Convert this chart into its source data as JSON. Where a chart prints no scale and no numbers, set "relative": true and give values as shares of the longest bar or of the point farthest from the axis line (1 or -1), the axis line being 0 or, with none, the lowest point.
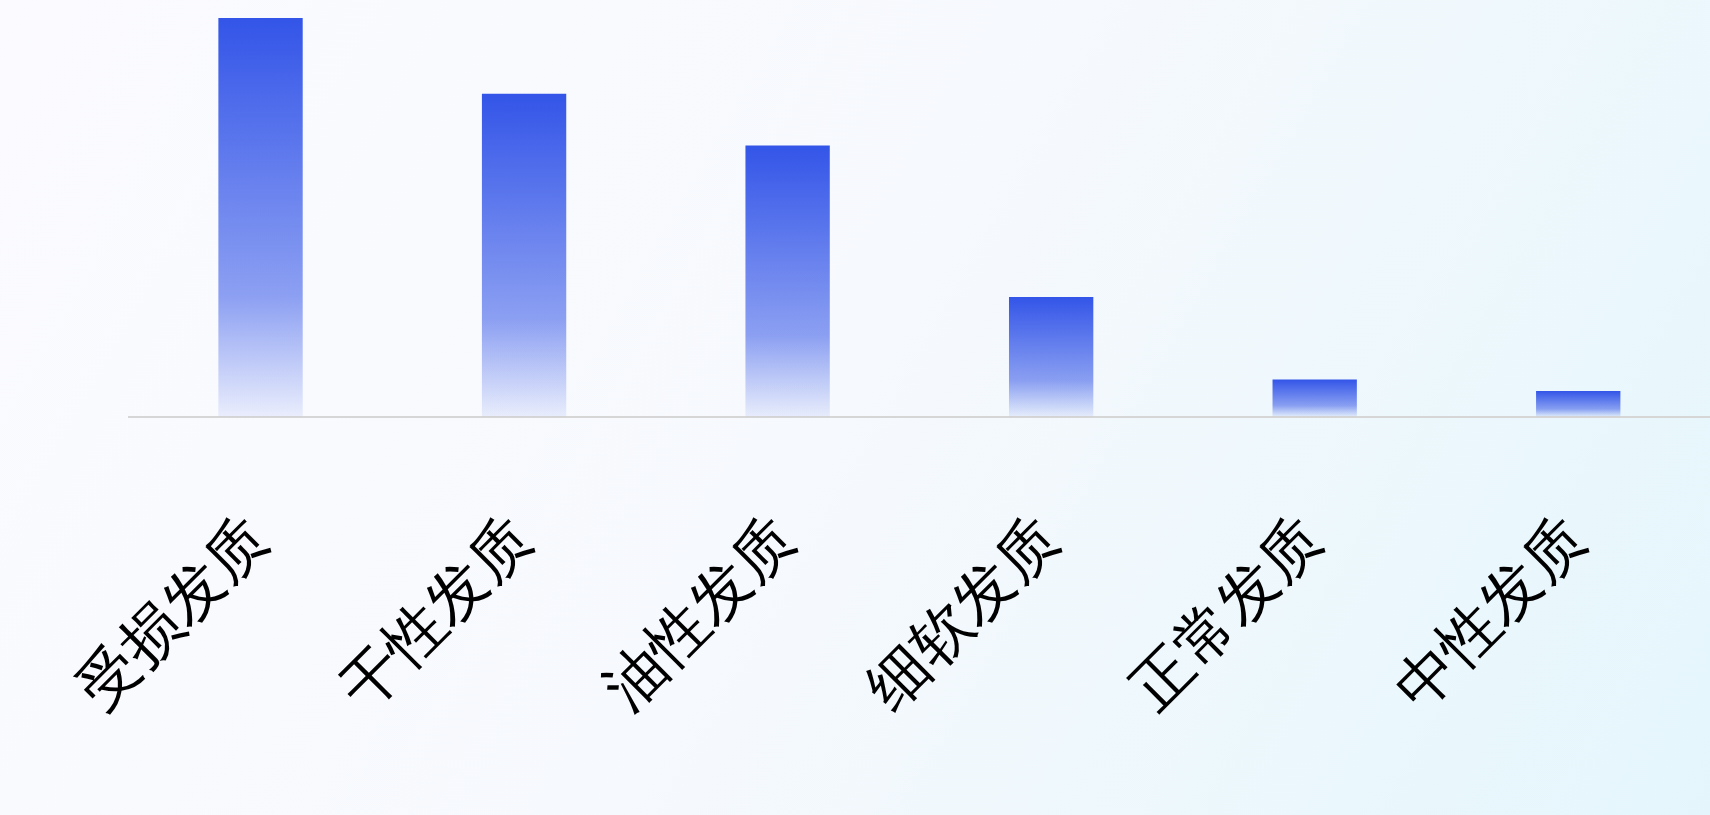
{
  "chart_data": {
    "type": "bar",
    "relative": true,
    "categories": [
      "受损发质",
      "干性发质",
      "油性发质",
      "细软发质",
      "正常发质",
      "中性发质"
    ],
    "values": [
      1,
      0.81,
      0.68,
      0.3,
      0.093,
      0.064
    ],
    "color": "#3355e8",
    "grid": false,
    "legend": false
  }
}
